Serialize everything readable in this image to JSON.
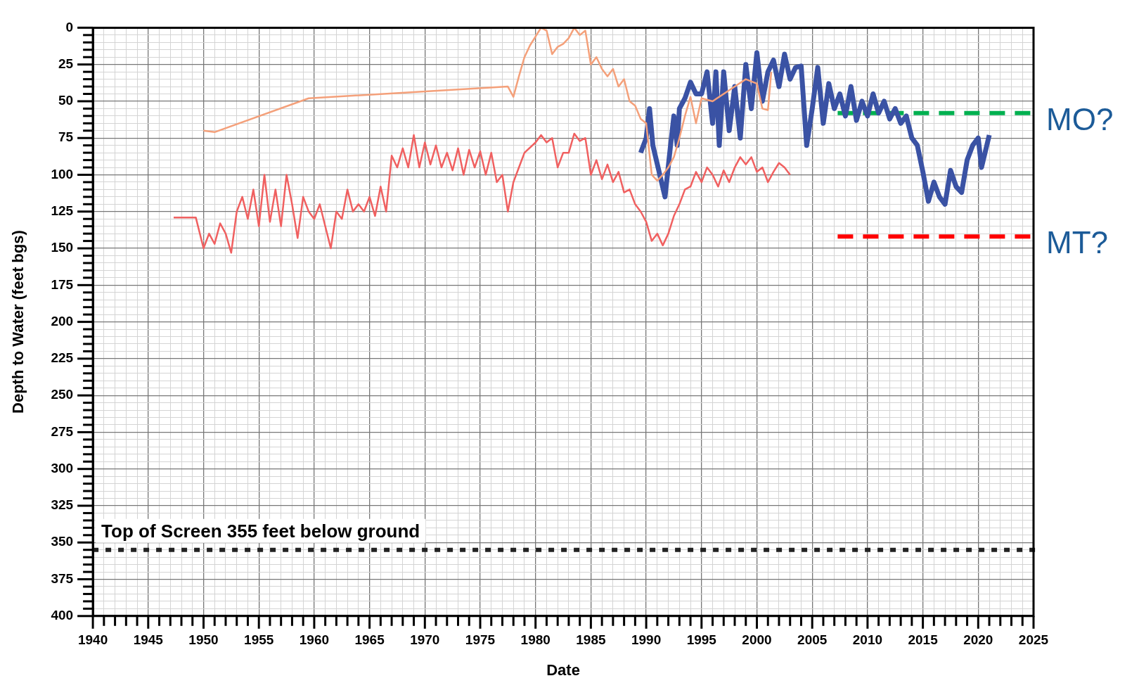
{
  "chart_data": {
    "type": "line",
    "xlabel": "Date",
    "ylabel": "Depth to Water (feet bgs)",
    "xlim": [
      1940,
      2025
    ],
    "ylim": [
      400,
      0
    ],
    "xticks": [
      1940,
      {
        "value": 1941,
        "label": null
      },
      {
        "value": 1942,
        "label": null
      },
      {
        "value": 1943,
        "label": null
      },
      {
        "value": 1944,
        "label": null
      },
      1945,
      {
        "value": 1946,
        "label": null
      },
      {
        "value": 1947,
        "label": null
      },
      {
        "value": 1948,
        "label": null
      },
      {
        "value": 1949,
        "label": null
      },
      1950,
      {
        "value": 1951,
        "label": null
      },
      {
        "value": 1952,
        "label": null
      },
      {
        "value": 1953,
        "label": null
      },
      {
        "value": 1954,
        "label": null
      },
      1955,
      {
        "value": 1956,
        "label": null
      },
      {
        "value": 1957,
        "label": null
      },
      {
        "value": 1958,
        "label": null
      },
      {
        "value": 1959,
        "label": null
      },
      1960,
      {
        "value": 1961,
        "label": null
      },
      {
        "value": 1962,
        "label": null
      },
      {
        "value": 1963,
        "label": null
      },
      {
        "value": 1964,
        "label": null
      },
      1965,
      {
        "value": 1966,
        "label": null
      },
      {
        "value": 1967,
        "label": null
      },
      {
        "value": 1968,
        "label": null
      },
      {
        "value": 1969,
        "label": null
      },
      1970,
      {
        "value": 1971,
        "label": null
      },
      {
        "value": 1972,
        "label": null
      },
      {
        "value": 1973,
        "label": null
      },
      {
        "value": 1974,
        "label": null
      },
      1975,
      {
        "value": 1976,
        "label": null
      },
      {
        "value": 1977,
        "label": null
      },
      {
        "value": 1978,
        "label": null
      },
      {
        "value": 1979,
        "label": null
      },
      1980,
      {
        "value": 1981,
        "label": null
      },
      {
        "value": 1982,
        "label": null
      },
      {
        "value": 1983,
        "label": null
      },
      {
        "value": 1984,
        "label": null
      },
      1985,
      {
        "value": 1986,
        "label": null
      },
      {
        "value": 1987,
        "label": null
      },
      {
        "value": 1988,
        "label": null
      },
      {
        "value": 1989,
        "label": null
      },
      1990,
      {
        "value": 1991,
        "label": null
      },
      {
        "value": 1992,
        "label": null
      },
      {
        "value": 1993,
        "label": null
      },
      {
        "value": 1994,
        "label": null
      },
      1995,
      {
        "value": 1996,
        "label": null
      },
      {
        "value": 1997,
        "label": null
      },
      {
        "value": 1998,
        "label": null
      },
      {
        "value": 1999,
        "label": null
      },
      2000,
      {
        "value": 2001,
        "label": null
      },
      {
        "value": 2002,
        "label": null
      },
      {
        "value": 2003,
        "label": null
      },
      {
        "value": 2004,
        "label": null
      },
      2005,
      {
        "value": 2006,
        "label": null
      },
      {
        "value": 2007,
        "label": null
      },
      {
        "value": 2008,
        "label": null
      },
      {
        "value": 2009,
        "label": null
      },
      2010,
      {
        "value": 2011,
        "label": null
      },
      {
        "value": 2012,
        "label": null
      },
      {
        "value": 2013,
        "label": null
      },
      {
        "value": 2014,
        "label": null
      },
      2015,
      {
        "value": 2016,
        "label": null
      },
      {
        "value": 2017,
        "label": null
      },
      {
        "value": 2018,
        "label": null
      },
      {
        "value": 2019,
        "label": null
      },
      2020,
      {
        "value": 2021,
        "label": null
      },
      {
        "value": 2022,
        "label": null
      },
      {
        "value": 2023,
        "label": null
      },
      {
        "value": 2024,
        "label": null
      },
      2025
    ],
    "yticks": [
      0,
      {
        "value": 5,
        "label": null
      },
      {
        "value": 10,
        "label": null
      },
      {
        "value": 15,
        "label": null
      },
      {
        "value": 20,
        "label": null
      },
      25,
      {
        "value": 30,
        "label": null
      },
      {
        "value": 35,
        "label": null
      },
      {
        "value": 40,
        "label": null
      },
      {
        "value": 45,
        "label": null
      },
      50,
      {
        "value": 55,
        "label": null
      },
      {
        "value": 60,
        "label": null
      },
      {
        "value": 65,
        "label": null
      },
      {
        "value": 70,
        "label": null
      },
      75,
      {
        "value": 80,
        "label": null
      },
      {
        "value": 85,
        "label": null
      },
      {
        "value": 90,
        "label": null
      },
      {
        "value": 95,
        "label": null
      },
      100,
      {
        "value": 105,
        "label": null
      },
      {
        "value": 110,
        "label": null
      },
      {
        "value": 115,
        "label": null
      },
      {
        "value": 120,
        "label": null
      },
      125,
      {
        "value": 130,
        "label": null
      },
      {
        "value": 135,
        "label": null
      },
      {
        "value": 140,
        "label": null
      },
      {
        "value": 145,
        "label": null
      },
      150,
      {
        "value": 155,
        "label": null
      },
      {
        "value": 160,
        "label": null
      },
      {
        "value": 165,
        "label": null
      },
      {
        "value": 170,
        "label": null
      },
      175,
      {
        "value": 180,
        "label": null
      },
      {
        "value": 185,
        "label": null
      },
      {
        "value": 190,
        "label": null
      },
      {
        "value": 195,
        "label": null
      },
      200,
      {
        "value": 205,
        "label": null
      },
      {
        "value": 210,
        "label": null
      },
      {
        "value": 215,
        "label": null
      },
      {
        "value": 220,
        "label": null
      },
      225,
      {
        "value": 230,
        "label": null
      },
      {
        "value": 235,
        "label": null
      },
      {
        "value": 240,
        "label": null
      },
      {
        "value": 245,
        "label": null
      },
      250,
      {
        "value": 255,
        "label": null
      },
      {
        "value": 260,
        "label": null
      },
      {
        "value": 265,
        "label": null
      },
      {
        "value": 270,
        "label": null
      },
      275,
      {
        "value": 280,
        "label": null
      },
      {
        "value": 285,
        "label": null
      },
      {
        "value": 290,
        "label": null
      },
      {
        "value": 295,
        "label": null
      },
      300,
      {
        "value": 305,
        "label": null
      },
      {
        "value": 310,
        "label": null
      },
      {
        "value": 315,
        "label": null
      },
      {
        "value": 320,
        "label": null
      },
      325,
      {
        "value": 330,
        "label": null
      },
      {
        "value": 335,
        "label": null
      },
      {
        "value": 340,
        "label": null
      },
      {
        "value": 345,
        "label": null
      },
      350,
      {
        "value": 355,
        "label": null
      },
      {
        "value": 360,
        "label": null
      },
      {
        "value": 365,
        "label": null
      },
      {
        "value": 370,
        "label": null
      },
      375,
      {
        "value": 380,
        "label": null
      },
      {
        "value": 385,
        "label": null
      },
      {
        "value": 390,
        "label": null
      },
      {
        "value": 395,
        "label": null
      },
      400
    ],
    "grid": true,
    "legend": false,
    "marker": "none",
    "line_style": "solid",
    "series": [
      {
        "color": "#f06060",
        "x": [
          1947.3,
          1949.3,
          1950,
          1950.5,
          1951,
          1951.5,
          1952,
          1952.5,
          1953,
          1953.5,
          1954,
          1954.5,
          1955,
          1955.5,
          1956,
          1956.5,
          1957,
          1957.5,
          1958,
          1958.5,
          1959,
          1959.5,
          1960,
          1960.5,
          1961,
          1961.5,
          1962,
          1962.5,
          1963,
          1963.5,
          1964,
          1964.5,
          1965,
          1965.5,
          1966,
          1966.5,
          1967,
          1967.5,
          1968,
          1968.5,
          1969,
          1969.5,
          1970,
          1970.5,
          1971,
          1971.5,
          1972,
          1972.5,
          1973,
          1973.5,
          1974,
          1974.5,
          1975,
          1975.5,
          1976,
          1976.5,
          1977,
          1977.5,
          1978,
          1978.5,
          1979,
          1980,
          1980.5,
          1981,
          1981.5,
          1982,
          1982.5,
          1983,
          1983.5,
          1984,
          1984.5,
          1985,
          1985.5,
          1986,
          1986.5,
          1987,
          1987.5,
          1988,
          1988.5,
          1989,
          1989.5,
          1990,
          1990.5,
          1991,
          1991.5,
          1992,
          1992.5,
          1993,
          1993.5,
          1994,
          1994.5,
          1995,
          1995.5,
          1996,
          1996.5,
          1997,
          1997.5,
          1998,
          1998.5,
          1999,
          1999.5,
          2000,
          2000.5,
          2001,
          2001.5,
          2002,
          2002.5,
          2003
        ],
        "values": [
          129,
          129,
          150,
          140,
          147,
          133,
          140,
          153,
          125,
          115,
          130,
          110,
          135,
          100,
          132,
          110,
          135,
          100,
          120,
          143,
          115,
          125,
          130,
          120,
          135,
          150,
          125,
          130,
          110,
          125,
          120,
          125,
          115,
          128,
          108,
          125,
          87,
          95,
          82,
          95,
          73,
          95,
          78,
          93,
          80,
          95,
          85,
          97,
          82,
          100,
          83,
          95,
          84,
          100,
          85,
          105,
          100,
          125,
          105,
          95,
          85,
          78,
          73,
          78,
          75,
          95,
          85,
          85,
          72,
          77,
          75,
          100,
          90,
          103,
          93,
          105,
          98,
          112,
          110,
          120,
          125,
          132,
          145,
          140,
          148,
          140,
          128,
          120,
          110,
          108,
          98,
          105,
          95,
          100,
          108,
          97,
          105,
          95,
          88,
          93,
          88,
          98,
          95,
          105,
          98,
          92,
          95,
          100
        ]
      },
      {
        "color": "#f4a07a",
        "x": [
          1950,
          1951,
          1959.5,
          1977.5,
          1978,
          1978.5,
          1979,
          1979.5,
          1980.5,
          1981,
          1981.5,
          1982,
          1982.5,
          1983,
          1983.5,
          1984,
          1984.5,
          1985,
          1985.5,
          1986,
          1986.5,
          1987,
          1987.5,
          1988,
          1988.5,
          1989,
          1989.5,
          1990,
          1990.5,
          1991,
          1991.5,
          1992,
          1992.5,
          1993,
          1993.5,
          1994,
          1994.5,
          1995,
          1996,
          1997,
          1998,
          1999,
          2000,
          2000.5,
          2001,
          2001.3
        ],
        "values": [
          70,
          71,
          48,
          40,
          47,
          33,
          20,
          12,
          0,
          2,
          18,
          13,
          11,
          7,
          0,
          5,
          2,
          25,
          20,
          28,
          33,
          28,
          40,
          35,
          50,
          53,
          62,
          65,
          100,
          104,
          100,
          95,
          88,
          75,
          60,
          47,
          65,
          48,
          50,
          45,
          40,
          35,
          38,
          55,
          56,
          30
        ]
      },
      {
        "color": "#3a52a4",
        "x": [
          1989.5,
          1990,
          1990.3,
          1990.6,
          1991.7,
          1992.2,
          1992.5,
          1992.8,
          1993,
          1993.5,
          1994,
          1994.5,
          1995,
          1995.5,
          1996,
          1996.3,
          1996.6,
          1997,
          1997.5,
          1998,
          1998.5,
          1999,
          1999.5,
          2000,
          2000.5,
          2001,
          2001.5,
          2002,
          2002.5,
          2003,
          2003.5,
          2004,
          2004.5,
          2005,
          2005.5,
          2006,
          2006.5,
          2007,
          2007.5,
          2008,
          2008.5,
          2009,
          2009.5,
          2010,
          2010.5,
          2011,
          2011.5,
          2012,
          2012.5,
          2013,
          2013.5,
          2014,
          2014.5,
          2015,
          2015.5,
          2016,
          2016.5,
          2017,
          2017.5,
          2018,
          2018.5,
          2019,
          2019.5,
          2020,
          2020.3,
          2021
        ],
        "values": [
          85,
          75,
          55,
          80,
          115,
          80,
          60,
          80,
          55,
          48,
          37,
          45,
          45,
          30,
          65,
          30,
          80,
          30,
          70,
          40,
          75,
          25,
          55,
          17,
          50,
          30,
          22,
          40,
          18,
          35,
          27,
          26,
          80,
          55,
          27,
          65,
          38,
          55,
          45,
          60,
          40,
          63,
          50,
          60,
          45,
          58,
          50,
          62,
          55,
          65,
          60,
          75,
          80,
          98,
          118,
          105,
          115,
          120,
          97,
          108,
          112,
          90,
          80,
          75,
          95,
          73
        ]
      },
      {
        "name": "MO?",
        "color": "#00b050",
        "line_style": "dashed",
        "x": [
          2007.3,
          2025
        ],
        "values": [
          58,
          58
        ]
      },
      {
        "name": "MT?",
        "color": "#ff0000",
        "line_style": "dashed",
        "x": [
          2007.3,
          2025
        ],
        "values": [
          142,
          142
        ]
      }
    ],
    "ref_lines": [
      {
        "axis": "y",
        "value": 355,
        "label": "Top of Screen 355 feet below ground",
        "color": "#222222",
        "line_style": "dotted"
      }
    ]
  }
}
